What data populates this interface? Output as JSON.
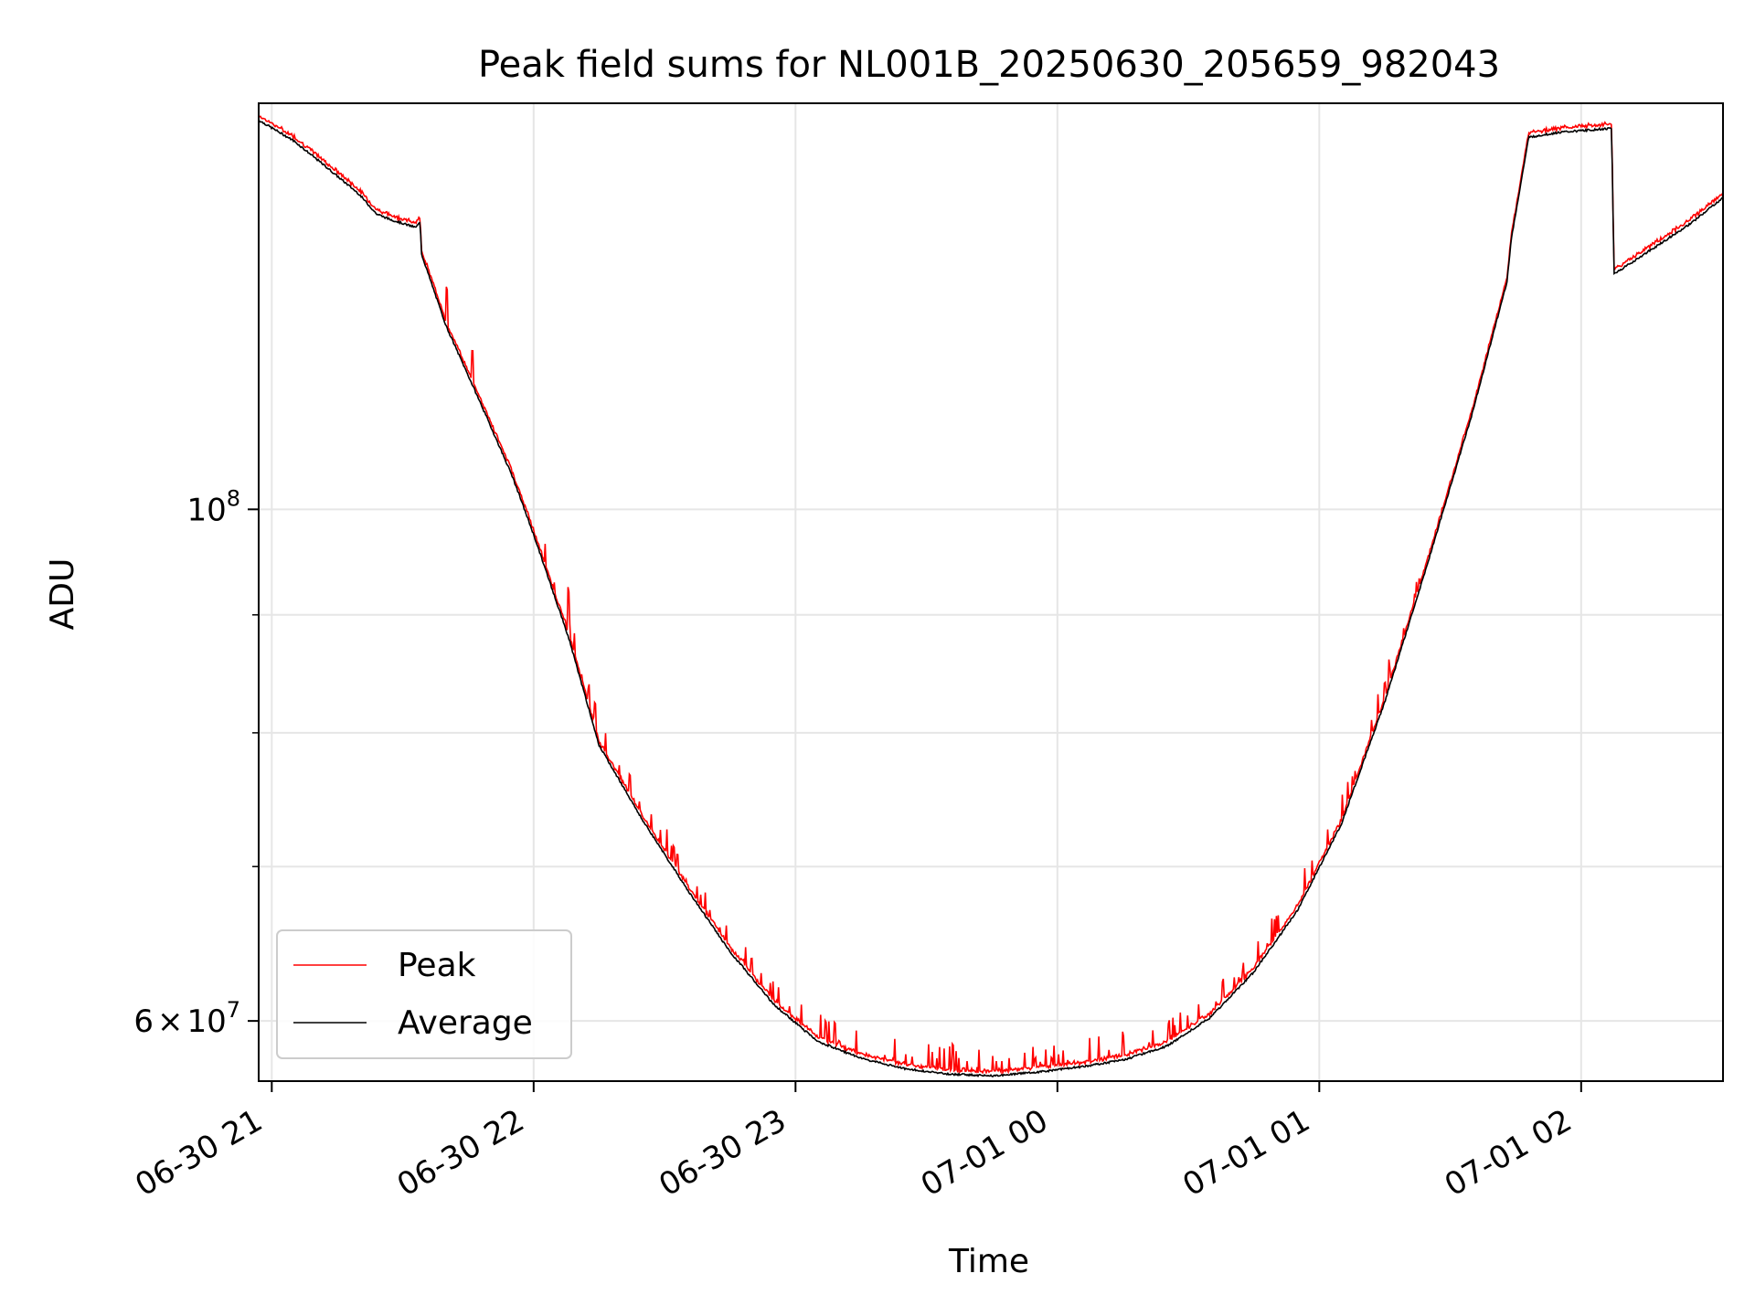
{
  "chart_data": {
    "type": "line",
    "title": "Peak field sums for NL001B_20250630_205659_982043",
    "xlabel": "Time",
    "ylabel": "ADU",
    "yscale": "log",
    "ylim": [
      56500000,
      150000000
    ],
    "xlim": [
      "2025-06-30 20:57:00",
      "2025-07-01 02:32:30"
    ],
    "grid": true,
    "legend": {
      "loc": "lower-left"
    },
    "x_ticks": [
      {
        "t": "2025-06-30 21:00",
        "label": "06-30 21"
      },
      {
        "t": "2025-06-30 22:00",
        "label": "06-30 22"
      },
      {
        "t": "2025-06-30 23:00",
        "label": "06-30 23"
      },
      {
        "t": "2025-07-01 00:00",
        "label": "07-01 00"
      },
      {
        "t": "2025-07-01 01:00",
        "label": "07-01 01"
      },
      {
        "t": "2025-07-01 02:00",
        "label": "07-01 02"
      }
    ],
    "y_ticks": [
      {
        "value": 100000000,
        "base": "10",
        "exp": "8"
      },
      {
        "value": 60000000,
        "mant": "6",
        "base": "10",
        "exp": "7"
      }
    ],
    "y_minor_ticks": [
      70000000,
      80000000,
      90000000,
      200000000
    ],
    "series": [
      {
        "name": "Peak",
        "color": "#ff0000",
        "spikes": [
          [
            "2025-06-30 21:40",
            0.035
          ],
          [
            "2025-06-30 21:46",
            0.03
          ],
          [
            "2025-06-30 22:08",
            0.045
          ],
          [
            "2025-06-30 22:14",
            0.025
          ],
          [
            "2025-06-30 22:22",
            0.02
          ],
          [
            "2025-06-30 22:33",
            0.015
          ],
          [
            "2025-06-30 22:50",
            0.015
          ],
          [
            "2025-06-30 23:07",
            0.02
          ],
          [
            "2025-06-30 23:36",
            0.025
          ],
          [
            "2025-06-30 23:55",
            0.01
          ],
          [
            "2025-07-01 00:38",
            0.02
          ],
          [
            "2025-07-01 01:15",
            0.015
          ]
        ]
      },
      {
        "name": "Average",
        "color": "#000000",
        "points": [
          [
            "2025-06-30 20:57:00",
            147500000
          ],
          [
            "2025-06-30 21:05:00",
            144500000
          ],
          [
            "2025-06-30 21:12:00",
            141000000
          ],
          [
            "2025-06-30 21:20:00",
            137000000
          ],
          [
            "2025-06-30 21:24:00",
            134300000
          ],
          [
            "2025-06-30 21:27:00",
            133600000
          ],
          [
            "2025-06-30 21:33:00",
            132500000
          ],
          [
            "2025-06-30 21:34:00",
            133200000
          ],
          [
            "2025-06-30 21:34:20",
            129000000
          ],
          [
            "2025-06-30 21:40:00",
            120000000
          ],
          [
            "2025-06-30 21:48:00",
            111000000
          ],
          [
            "2025-06-30 21:55:00",
            103500000
          ],
          [
            "2025-06-30 22:00:00",
            97500000
          ],
          [
            "2025-06-30 22:08:00",
            88000000
          ],
          [
            "2025-06-30 22:15:00",
            79000000
          ],
          [
            "2025-06-30 22:25:00",
            73300000
          ],
          [
            "2025-06-30 22:35:00",
            68500000
          ],
          [
            "2025-06-30 22:45:00",
            64300000
          ],
          [
            "2025-06-30 22:55:00",
            61000000
          ],
          [
            "2025-06-30 23:05:00",
            58800000
          ],
          [
            "2025-06-30 23:15:00",
            57800000
          ],
          [
            "2025-06-30 23:25:00",
            57200000
          ],
          [
            "2025-06-30 23:35:00",
            56900000
          ],
          [
            "2025-06-30 23:45:00",
            56800000
          ],
          [
            "2025-06-30 23:55:00",
            57000000
          ],
          [
            "2025-07-01 00:05:00",
            57300000
          ],
          [
            "2025-07-01 00:15:00",
            57700000
          ],
          [
            "2025-07-01 00:25:00",
            58500000
          ],
          [
            "2025-07-01 00:35:00",
            60200000
          ],
          [
            "2025-07-01 00:45:00",
            63000000
          ],
          [
            "2025-07-01 00:55:00",
            67000000
          ],
          [
            "2025-07-01 01:05:00",
            73000000
          ],
          [
            "2025-07-01 01:15:00",
            82500000
          ],
          [
            "2025-07-01 01:25:00",
            95000000
          ],
          [
            "2025-07-01 01:35:00",
            110000000
          ],
          [
            "2025-07-01 01:43:00",
            125500000
          ],
          [
            "2025-07-01 01:44:00",
            131000000
          ],
          [
            "2025-07-01 01:48:00",
            145000000
          ],
          [
            "2025-07-01 01:55:00",
            145700000
          ],
          [
            "2025-07-01 02:07:00",
            146300000
          ],
          [
            "2025-07-01 02:07:30",
            126500000
          ],
          [
            "2025-07-01 02:15:00",
            129200000
          ],
          [
            "2025-07-01 02:25:00",
            133000000
          ],
          [
            "2025-07-01 02:32:30",
            136500000
          ]
        ]
      }
    ]
  }
}
